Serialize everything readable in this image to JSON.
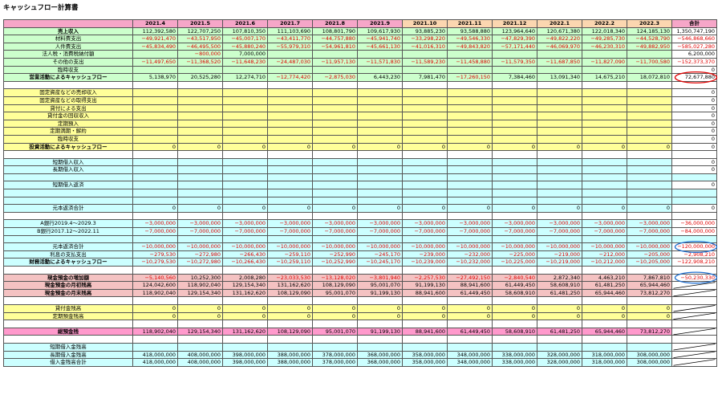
{
  "title": "キャッシュフロー計算書",
  "colors": {
    "pink": "#f6a6c8",
    "peach": "#fbd6b0",
    "yellow": "#ffff99",
    "cyan": "#ccffff",
    "rose": "#f4c2c2",
    "magenta": "#ff99cc",
    "negative": "#e00000",
    "circle_red": "#e00000",
    "circle_blue": "#1f6fd0"
  },
  "header": {
    "months": [
      "2021.4",
      "2021.5",
      "2021.6",
      "2021.7",
      "2021.8",
      "2021.9",
      "2021.10",
      "2021.11",
      "2021.12",
      "2022.1",
      "2022.2",
      "2022.3"
    ],
    "total": "合計"
  },
  "rows": [
    {
      "label": "売上収入",
      "bg": "green",
      "bold": true,
      "cells": [
        "112,392,580",
        "122,707,250",
        "107,810,350",
        "111,103,690",
        "108,801,790",
        "109,617,930",
        "93,885,230",
        "93,588,880",
        "123,964,640",
        "120,671,380",
        "122,018,340",
        "124,185,130",
        "1,350,747,190"
      ]
    },
    {
      "label": "材料費支出",
      "bg": "green",
      "cells": [
        "−49,921,470",
        "−43,517,950",
        "−45,007,170",
        "−43,411,770",
        "−44,757,880",
        "−45,941,740",
        "−33,298,220",
        "−49,546,330",
        "−47,829,390",
        "−49,822,220",
        "−49,285,730",
        "−44,528,790",
        "−546,868,660"
      ]
    },
    {
      "label": "人件費支出",
      "bg": "green",
      "cells": [
        "−45,834,490",
        "−46,495,500",
        "−45,880,240",
        "−55,979,310",
        "−54,961,810",
        "−45,661,130",
        "−41,016,310",
        "−49,843,820",
        "−57,171,440",
        "−46,069,970",
        "−46,230,310",
        "−49,882,950",
        "−585,027,280"
      ]
    },
    {
      "label": "法人税・消費税納付額",
      "bg": "green",
      "cells": [
        "",
        "−800,000",
        "7,000,000",
        "",
        "",
        "",
        "",
        "",
        "",
        "",
        "",
        "",
        "6,200,000"
      ]
    },
    {
      "label": "その他の支出",
      "bg": "green",
      "cells": [
        "−11,497,650",
        "−11,368,520",
        "−11,648,230",
        "−24,487,030",
        "−11,957,130",
        "−11,571,830",
        "−11,589,230",
        "−11,458,880",
        "−11,579,350",
        "−11,687,850",
        "−11,827,090",
        "−11,700,580",
        "−152,373,370"
      ]
    },
    {
      "label": "臨時収支",
      "bg": "green",
      "cells": [
        "",
        "",
        "",
        "",
        "",
        "",
        "",
        "",
        "",
        "",
        "",
        "",
        "0"
      ]
    },
    {
      "label": "営業活動によるキャッシュフロー",
      "bg": "green",
      "bold": true,
      "cells": [
        "5,138,970",
        "20,525,280",
        "12,274,710",
        "−12,774,420",
        "−2,875,030",
        "6,443,230",
        "7,981,470",
        "−17,260,150",
        "7,384,460",
        "13,091,340",
        "14,675,210",
        "18,072,810",
        "72,677,880"
      ]
    },
    {
      "spacer": true,
      "bg": "white"
    },
    {
      "label": "固定資産などの売却収入",
      "bg": "yellow",
      "cells": [
        "",
        "",
        "",
        "",
        "",
        "",
        "",
        "",
        "",
        "",
        "",
        "",
        "0"
      ]
    },
    {
      "label": "固定資産などの取得支出",
      "bg": "yellow",
      "cells": [
        "",
        "",
        "",
        "",
        "",
        "",
        "",
        "",
        "",
        "",
        "",
        "",
        "0"
      ]
    },
    {
      "label": "貸付による支出",
      "bg": "yellow",
      "cells": [
        "",
        "",
        "",
        "",
        "",
        "",
        "",
        "",
        "",
        "",
        "",
        "",
        "0"
      ]
    },
    {
      "label": "貸付金の回収収入",
      "bg": "yellow",
      "cells": [
        "",
        "",
        "",
        "",
        "",
        "",
        "",
        "",
        "",
        "",
        "",
        "",
        "0"
      ]
    },
    {
      "label": "定期預入",
      "bg": "yellow",
      "cells": [
        "",
        "",
        "",
        "",
        "",
        "",
        "",
        "",
        "",
        "",
        "",
        "",
        "0"
      ]
    },
    {
      "label": "定期満期・解約",
      "bg": "yellow",
      "cells": [
        "",
        "",
        "",
        "",
        "",
        "",
        "",
        "",
        "",
        "",
        "",
        "",
        "0"
      ]
    },
    {
      "label": "臨時収支",
      "bg": "yellow",
      "cells": [
        "",
        "",
        "",
        "",
        "",
        "",
        "",
        "",
        "",
        "",
        "",
        "",
        "0"
      ]
    },
    {
      "label": "投資活動によるキャッシュフロー",
      "bg": "yellow",
      "bold": true,
      "cells": [
        "0",
        "0",
        "0",
        "0",
        "0",
        "0",
        "0",
        "0",
        "0",
        "0",
        "0",
        "0",
        "0"
      ]
    },
    {
      "spacer": true,
      "bg": "white"
    },
    {
      "label": "短期借入収入",
      "bg": "cyan",
      "cells": [
        "",
        "",
        "",
        "",
        "",
        "",
        "",
        "",
        "",
        "",
        "",
        "",
        "0"
      ]
    },
    {
      "label": "長期借入収入",
      "bg": "cyan",
      "cells": [
        "",
        "",
        "",
        "",
        "",
        "",
        "",
        "",
        "",
        "",
        "",
        "",
        "0"
      ]
    },
    {
      "spacer": true,
      "bg": "cyan"
    },
    {
      "label": "短期借入返済",
      "bg": "cyan",
      "cells": [
        "",
        "",
        "",
        "",
        "",
        "",
        "",
        "",
        "",
        "",
        "",
        "",
        "0"
      ]
    },
    {
      "spacer": true,
      "bg": "cyan"
    },
    {
      "spacer": true,
      "bg": "cyan"
    },
    {
      "label": "元本返済合計",
      "bg": "cyan",
      "cells": [
        "0",
        "0",
        "0",
        "0",
        "0",
        "0",
        "0",
        "0",
        "0",
        "0",
        "0",
        "0",
        "0"
      ]
    },
    {
      "spacer": true,
      "bg": "white"
    },
    {
      "label": "A銀行2019.4〜2029.3",
      "bg": "cyan",
      "cells": [
        "−3,000,000",
        "−3,000,000",
        "−3,000,000",
        "−3,000,000",
        "−3,000,000",
        "−3,000,000",
        "−3,000,000",
        "−3,000,000",
        "−3,000,000",
        "−3,000,000",
        "−3,000,000",
        "−3,000,000",
        "−36,000,000"
      ]
    },
    {
      "label": "B銀行2017.12〜2022.11",
      "bg": "cyan",
      "cells": [
        "−7,000,000",
        "−7,000,000",
        "−7,000,000",
        "−7,000,000",
        "−7,000,000",
        "−7,000,000",
        "−7,000,000",
        "−7,000,000",
        "−7,000,000",
        "−7,000,000",
        "−7,000,000",
        "−7,000,000",
        "−84,000,000"
      ]
    },
    {
      "spacer": true,
      "bg": "cyan"
    },
    {
      "label": "元本返済合計",
      "bg": "cyan",
      "cells": [
        "−10,000,000",
        "−10,000,000",
        "−10,000,000",
        "−10,000,000",
        "−10,000,000",
        "−10,000,000",
        "−10,000,000",
        "−10,000,000",
        "−10,000,000",
        "−10,000,000",
        "−10,000,000",
        "−10,000,000",
        "−120,000,000"
      ]
    },
    {
      "label": "利息の支払支出",
      "bg": "cyan",
      "cells": [
        "−279,530",
        "−272,980",
        "−266,430",
        "−259,110",
        "−252,990",
        "−245,170",
        "−239,000",
        "−232,000",
        "−225,000",
        "−219,000",
        "−212,000",
        "−205,000",
        "−2,908,210"
      ]
    },
    {
      "label": "財務活動によるキャッシュフロー",
      "bg": "cyan",
      "bold": true,
      "cells": [
        "−10,279,530",
        "−10,272,980",
        "−10,266,430",
        "−10,259,110",
        "−10,252,990",
        "−10,245,170",
        "−10,239,000",
        "−10,232,000",
        "−10,225,000",
        "−10,219,000",
        "−10,212,000",
        "−10,205,000",
        "−122,908,210"
      ]
    },
    {
      "spacer": true,
      "bg": "white"
    },
    {
      "label": "現金預金の増加額",
      "bg": "rose",
      "bold": true,
      "cells": [
        "−5,140,560",
        "10,252,300",
        "2,008,280",
        "−23,033,530",
        "−13,128,020",
        "−3,801,940",
        "−2,257,530",
        "−27,492,150",
        "−2,840,540",
        "2,872,340",
        "4,463,210",
        "7,867,810",
        "−50,230,330"
      ]
    },
    {
      "label": "現金預金の月初残高",
      "bg": "rose",
      "bold": true,
      "cells": [
        "124,042,600",
        "118,902,040",
        "129,154,340",
        "131,162,620",
        "108,129,090",
        "95,001,070",
        "91,199,130",
        "88,941,600",
        "61,449,450",
        "58,608,910",
        "61,481,250",
        "65,944,460",
        ""
      ]
    },
    {
      "label": "現金預金の月末残高",
      "bg": "rose",
      "bold": true,
      "cells": [
        "118,902,040",
        "129,154,340",
        "131,162,620",
        "108,129,090",
        "95,001,070",
        "91,199,130",
        "88,941,600",
        "61,449,450",
        "58,608,910",
        "61,481,250",
        "65,944,460",
        "73,812,270",
        ""
      ]
    },
    {
      "spacer": true,
      "bg": "white"
    },
    {
      "label": "貸付金残高",
      "bg": "yellow",
      "cells": [
        "0",
        "0",
        "0",
        "0",
        "0",
        "0",
        "0",
        "0",
        "0",
        "0",
        "0",
        "0",
        ""
      ]
    },
    {
      "label": "定期預金残高",
      "bg": "yellow",
      "cells": [
        "0",
        "0",
        "0",
        "0",
        "0",
        "0",
        "0",
        "0",
        "0",
        "0",
        "0",
        "0",
        ""
      ]
    },
    {
      "spacer": true,
      "bg": "white"
    },
    {
      "label": "総預金残",
      "bg": "magenta",
      "bold": true,
      "cells": [
        "118,902,040",
        "129,154,340",
        "131,162,620",
        "108,129,090",
        "95,001,070",
        "91,199,130",
        "88,941,600",
        "61,449,450",
        "58,608,910",
        "61,481,250",
        "65,944,460",
        "73,812,270",
        ""
      ]
    },
    {
      "spacer": true,
      "bg": "white"
    },
    {
      "label": "短期借入金残高",
      "bg": "cyan",
      "cells": [
        "",
        "",
        "",
        "",
        "",
        "",
        "",
        "",
        "",
        "",
        "",
        "",
        ""
      ]
    },
    {
      "label": "長期借入金残高",
      "bg": "cyan",
      "cells": [
        "418,000,000",
        "408,000,000",
        "398,000,000",
        "388,000,000",
        "378,000,000",
        "368,000,000",
        "358,000,000",
        "348,000,000",
        "338,000,000",
        "328,000,000",
        "318,000,000",
        "308,000,000",
        ""
      ]
    },
    {
      "label": "借入金残高合計",
      "bg": "cyan",
      "cells": [
        "418,000,000",
        "408,000,000",
        "398,000,000",
        "388,000,000",
        "378,000,000",
        "368,000,000",
        "358,000,000",
        "348,000,000",
        "338,000,000",
        "328,000,000",
        "318,000,000",
        "308,000,000",
        ""
      ]
    }
  ]
}
